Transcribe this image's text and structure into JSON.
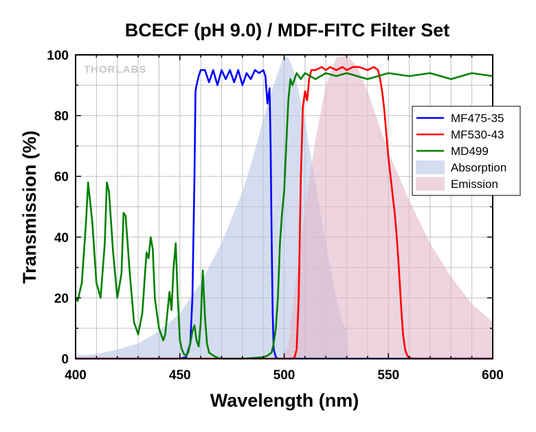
{
  "chart_data": {
    "type": "line",
    "title": "BCECF (pH 9.0) / MDF-FITC Filter Set",
    "xlabel": "Wavelength (nm)",
    "ylabel": "Transmission (%)",
    "xlim": [
      400,
      600
    ],
    "ylim": [
      0,
      100
    ],
    "xticks": [
      400,
      450,
      500,
      550,
      600
    ],
    "yticks": [
      0,
      20,
      40,
      60,
      80,
      100
    ],
    "grid": true,
    "legend_position": "right",
    "watermark": "THORLABS",
    "series": [
      {
        "name": "MF475-35",
        "kind": "line",
        "color": "#0000ff",
        "x": [
          400,
          450,
          453,
          455,
          456,
          457,
          457.5,
          458,
          459,
          460,
          462,
          464,
          466,
          468,
          470,
          472,
          474,
          476,
          478,
          480,
          482,
          484,
          486,
          488,
          490,
          491,
          492,
          493,
          493.5,
          494,
          494.5,
          495,
          496,
          497,
          500,
          600
        ],
        "y": [
          0,
          0,
          0.5,
          5,
          20,
          60,
          88,
          90,
          93,
          95,
          95,
          91,
          95,
          90,
          95,
          92,
          95,
          91,
          95,
          90,
          94,
          92,
          95,
          94,
          95,
          93,
          84,
          89,
          70,
          40,
          15,
          3,
          0.5,
          0,
          0,
          0
        ]
      },
      {
        "name": "MF530-43",
        "kind": "line",
        "color": "#ff0000",
        "x": [
          400,
          504,
          505,
          506,
          507,
          508,
          509,
          510,
          511,
          512,
          513,
          515,
          518,
          520,
          522,
          525,
          528,
          530,
          533,
          536,
          540,
          543,
          545,
          546,
          547,
          548,
          549,
          550,
          551,
          552,
          553,
          554,
          555,
          556,
          557,
          558,
          559,
          560,
          562,
          600
        ],
        "y": [
          0,
          0,
          0.5,
          3,
          20,
          60,
          83,
          88,
          85,
          92,
          95,
          95,
          96,
          95,
          96,
          95,
          96,
          95,
          96,
          96,
          95,
          96,
          95,
          92,
          88,
          82,
          74,
          66,
          60,
          54,
          48,
          40,
          30,
          18,
          8,
          3,
          1,
          0.3,
          0,
          0
        ]
      },
      {
        "name": "MD499",
        "kind": "line",
        "color": "#008000",
        "x": [
          400,
          401,
          403,
          405,
          406,
          408,
          410,
          412,
          414,
          415,
          416,
          418,
          420,
          422,
          423,
          424,
          426,
          428,
          430,
          432,
          434,
          435,
          436,
          437,
          438,
          440,
          442,
          443,
          444,
          445,
          446,
          447,
          448,
          449,
          450,
          451,
          452,
          453,
          454,
          455,
          456,
          457,
          458,
          459,
          460,
          461,
          462,
          463,
          464,
          466,
          468,
          470,
          475,
          480,
          485,
          490,
          492,
          494,
          495,
          496,
          497,
          498,
          499,
          500,
          501,
          502,
          503,
          504,
          506,
          508,
          510,
          515,
          520,
          525,
          530,
          540,
          550,
          560,
          570,
          580,
          590,
          600
        ],
        "y": [
          20,
          19,
          25,
          45,
          58,
          45,
          25,
          20,
          38,
          58,
          55,
          35,
          20,
          28,
          48,
          47,
          28,
          12,
          8,
          15,
          35,
          33,
          40,
          36,
          20,
          10,
          6,
          8,
          15,
          22,
          16,
          30,
          38,
          20,
          6,
          3,
          1.5,
          1,
          2,
          5,
          9,
          11,
          6,
          4,
          12,
          29,
          14,
          5,
          2,
          1,
          0.3,
          0,
          0,
          0,
          0.2,
          0.5,
          1,
          2,
          5,
          10,
          20,
          38,
          48,
          55,
          70,
          85,
          92,
          90,
          94,
          92,
          94,
          92,
          94,
          93,
          94,
          92,
          94,
          93,
          94,
          92,
          94,
          93
        ]
      },
      {
        "name": "Absorption",
        "kind": "area",
        "color": "#b8c6e4",
        "opacity": 0.6,
        "x": [
          400,
          410,
          420,
          430,
          440,
          450,
          460,
          470,
          480,
          485,
          490,
          495,
          498,
          500,
          502,
          504,
          506,
          510,
          515,
          520,
          525,
          528,
          530,
          531
        ],
        "y": [
          1,
          1.5,
          3,
          5,
          9,
          15,
          25,
          38,
          55,
          66,
          79,
          90,
          96,
          100,
          99,
          96,
          91,
          78,
          58,
          38,
          20,
          12,
          9,
          0
        ]
      },
      {
        "name": "Emission",
        "kind": "area",
        "color": "#e3b8c8",
        "opacity": 0.6,
        "x": [
          500,
          502,
          505,
          508,
          510,
          515,
          520,
          525,
          530,
          535,
          540,
          545,
          550,
          560,
          570,
          580,
          590,
          600
        ],
        "y": [
          0,
          5,
          22,
          38,
          50,
          72,
          90,
          99,
          100,
          96,
          88,
          78,
          68,
          52,
          38,
          27,
          18,
          12
        ]
      }
    ]
  }
}
